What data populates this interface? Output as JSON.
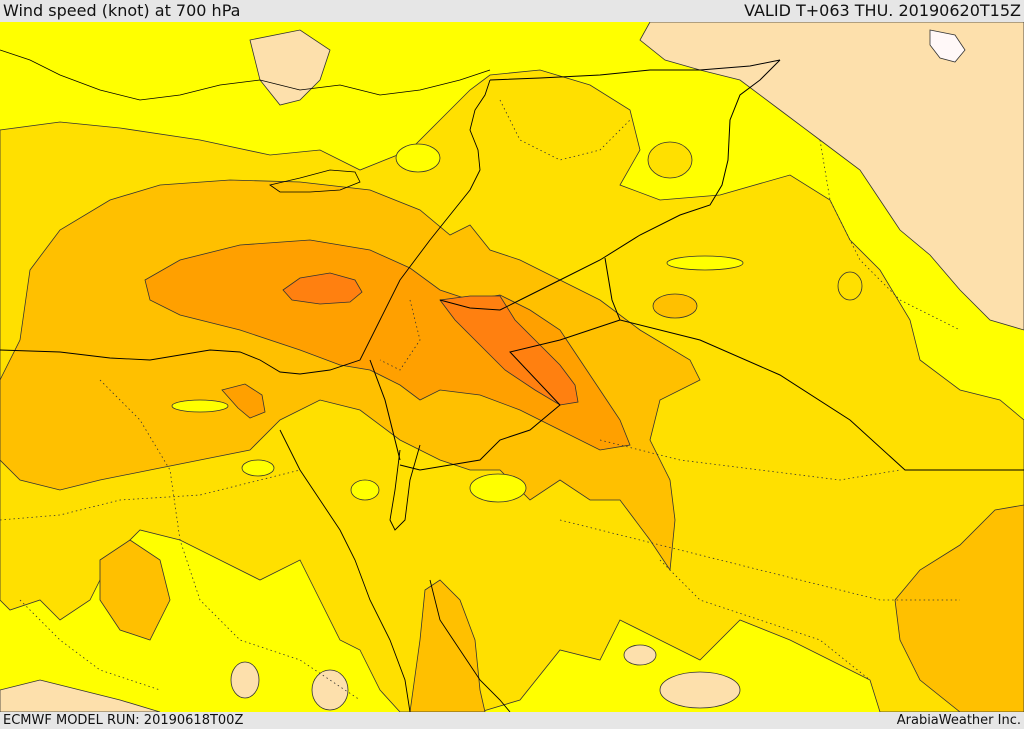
{
  "header": {
    "title": "Wind speed (knot) at 700 hPa",
    "valid_time": "VALID T+063 THU. 20190620T15Z"
  },
  "footer": {
    "model_run": "ECMWF MODEL RUN: 20190618T00Z",
    "credit": "ArabiaWeather Inc."
  },
  "map": {
    "variable": "wind speed",
    "units": "knot",
    "pressure_level": "700 hPa",
    "palette": {
      "band_0": "#fde0ac",
      "band_1": "#ffff00",
      "band_2": "#ffe000",
      "band_3": "#ffc000",
      "band_4": "#ffa000",
      "band_5": "#ff8010",
      "band_6": "#fff8f8",
      "contour": "#333333",
      "border": "#000000"
    }
  }
}
